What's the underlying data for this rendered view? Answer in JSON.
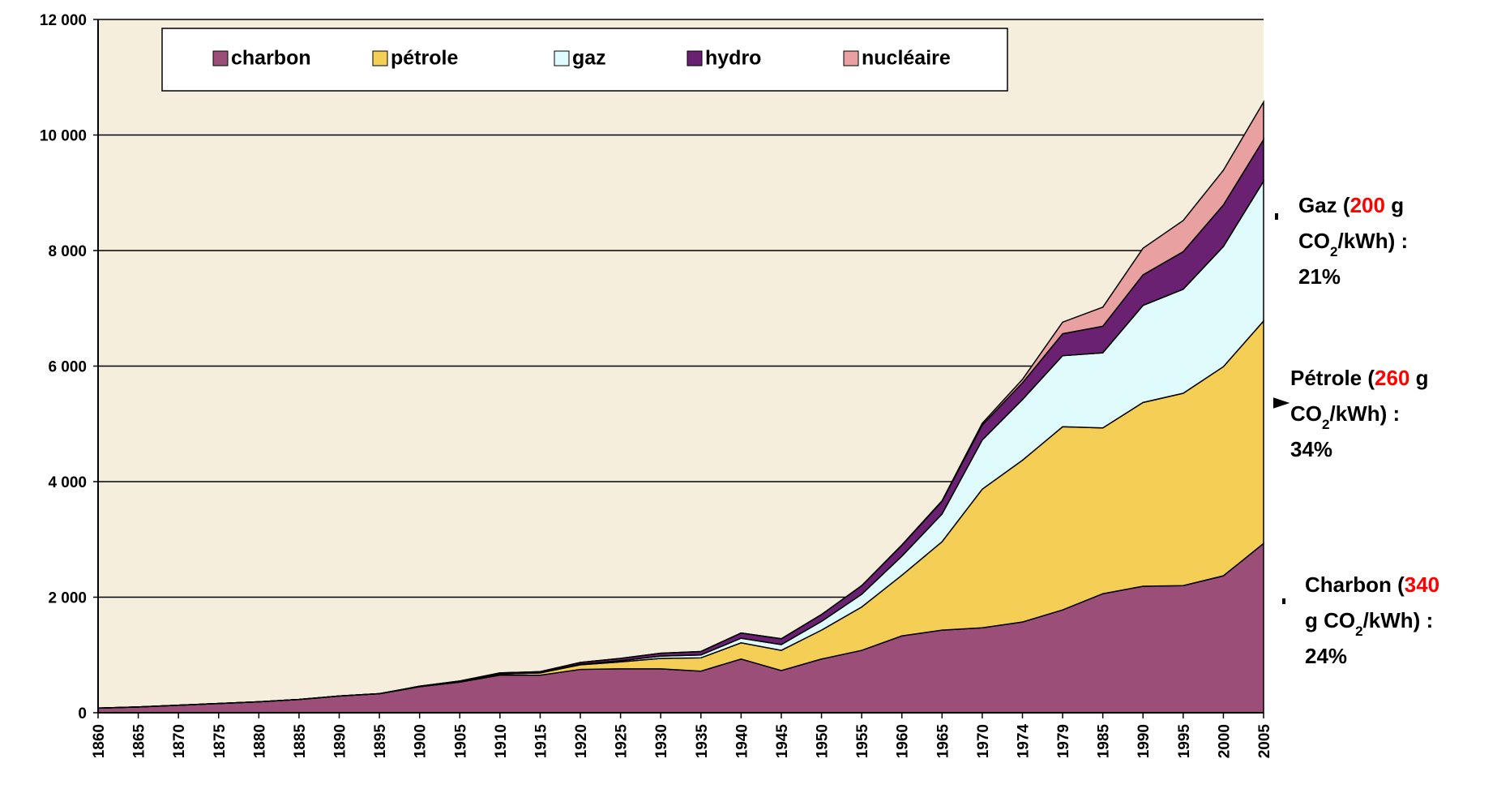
{
  "chart_data": {
    "type": "stacked-area",
    "categories": [
      "1860",
      "1865",
      "1870",
      "1875",
      "1880",
      "1885",
      "1890",
      "1895",
      "1900",
      "1905",
      "1910",
      "1915",
      "1920",
      "1925",
      "1930",
      "1935",
      "1940",
      "1945",
      "1950",
      "1955",
      "1960",
      "1965",
      "1970",
      "1974",
      "1979",
      "1985",
      "1990",
      "1995",
      "2000",
      "2005"
    ],
    "series": [
      {
        "name": "charbon",
        "color": "#9b4f78",
        "values": [
          80,
          100,
          130,
          160,
          190,
          230,
          290,
          330,
          450,
          530,
          650,
          650,
          750,
          760,
          760,
          720,
          930,
          730,
          930,
          1080,
          1330,
          1430,
          1470,
          1570,
          1780,
          2060,
          2190,
          2200,
          2370,
          2930
        ]
      },
      {
        "name": "pétrole",
        "color": "#f5cf55",
        "values": [
          0,
          0,
          0,
          0,
          0,
          0,
          0,
          0,
          0,
          10,
          20,
          40,
          80,
          120,
          180,
          230,
          280,
          350,
          500,
          750,
          1050,
          1530,
          2400,
          2800,
          3170,
          2870,
          3180,
          3330,
          3620,
          3850
        ]
      },
      {
        "name": "gaz",
        "color": "#e0fbfb",
        "values": [
          0,
          0,
          0,
          0,
          0,
          0,
          0,
          0,
          0,
          0,
          0,
          0,
          10,
          20,
          40,
          50,
          80,
          100,
          150,
          220,
          330,
          480,
          850,
          1050,
          1230,
          1300,
          1680,
          1800,
          2080,
          2420
        ]
      },
      {
        "name": "hydro",
        "color": "#6b2171",
        "values": [
          0,
          0,
          0,
          0,
          0,
          0,
          0,
          0,
          10,
          10,
          20,
          20,
          30,
          40,
          50,
          60,
          90,
          100,
          120,
          150,
          190,
          220,
          260,
          290,
          380,
          460,
          530,
          650,
          720,
          720
        ]
      },
      {
        "name": "nucléaire",
        "color": "#e8a0a0",
        "values": [
          0,
          0,
          0,
          0,
          0,
          0,
          0,
          0,
          0,
          0,
          0,
          0,
          0,
          0,
          0,
          0,
          0,
          0,
          0,
          0,
          5,
          10,
          30,
          60,
          200,
          330,
          460,
          540,
          600,
          650
        ]
      }
    ],
    "ylim": [
      0,
      12000
    ],
    "yticks": [
      0,
      {
        "value": 2000,
        "label": "2 000"
      },
      {
        "value": 4000,
        "label": "4 000"
      },
      {
        "value": 6000,
        "label": "6 000"
      },
      {
        "value": 8000,
        "label": "8 000"
      },
      {
        "value": 10000,
        "label": "10 000"
      },
      {
        "value": 12000,
        "label": "12 000"
      }
    ],
    "grid": true,
    "legend": "top",
    "background": "#f6eedd",
    "annotations": [
      {
        "lines": [
          [
            {
              "text": "Gaz ("
            },
            {
              "text": "200",
              "color": "#ff0000"
            },
            {
              "text": " g"
            }
          ],
          [
            {
              "text": "CO"
            },
            {
              "text": "2",
              "sub": true
            },
            {
              "text": "/kWh) :"
            }
          ],
          [
            {
              "text": "21%"
            }
          ]
        ]
      },
      {
        "lines": [
          [
            {
              "text": "Pétrole ("
            },
            {
              "text": "260",
              "color": "#ff0000"
            },
            {
              "text": " g"
            }
          ],
          [
            {
              "text": "CO"
            },
            {
              "text": "2",
              "sub": true
            },
            {
              "text": "/kWh) :"
            }
          ],
          [
            {
              "text": "34%"
            }
          ]
        ]
      },
      {
        "lines": [
          [
            {
              "text": "Charbon ("
            },
            {
              "text": "340",
              "color": "#ff0000"
            }
          ],
          [
            {
              "text": "g CO"
            },
            {
              "text": "2",
              "sub": true
            },
            {
              "text": "/kWh) :"
            }
          ],
          [
            {
              "text": "24%"
            }
          ]
        ]
      }
    ]
  }
}
